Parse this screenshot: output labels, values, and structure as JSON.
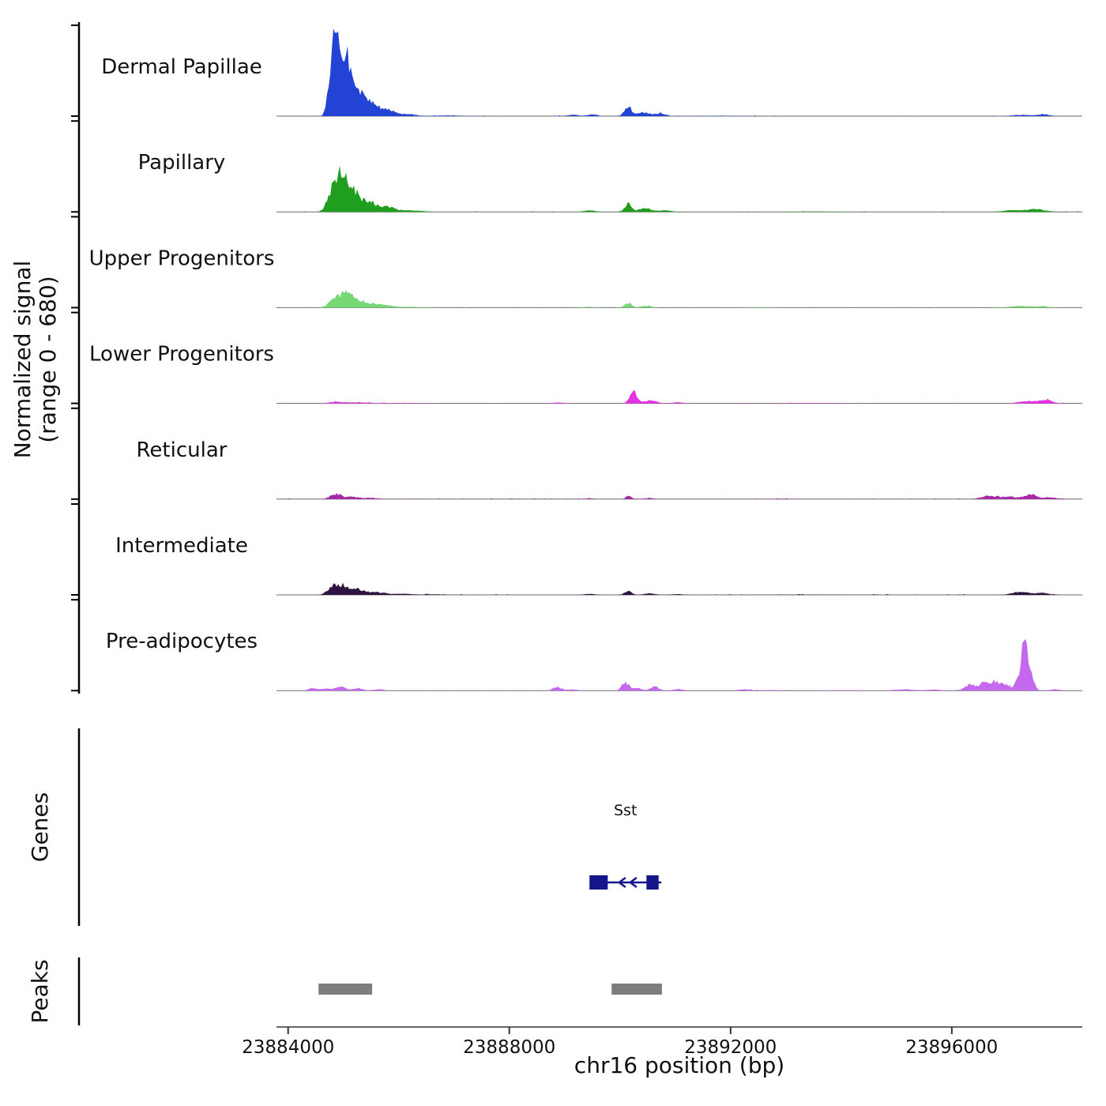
{
  "figure": {
    "xlabel": "chr16 position (bp)",
    "ylabel_line1": "Normalized signal",
    "ylabel_line2": "(range 0 - 680)",
    "genes_section_label": "Genes",
    "peaks_section_label": "Peaks"
  },
  "chart_data": {
    "type": "area",
    "xlabel": "chr16 position (bp)",
    "ylabel": "Normalized signal (range 0 - 680)",
    "xlim": [
      23883790,
      23898360
    ],
    "ylim": [
      0,
      680
    ],
    "x_ticks": [
      23884000,
      23888000,
      23892000,
      23896000
    ],
    "grid": false,
    "bump_format": "[center_bp, width_bp, height_signal_units]",
    "tracks": [
      {
        "name": "Dermal Papillae",
        "color": "#2343d5",
        "bumps": [
          [
            23884780,
            60,
            300
          ],
          [
            23884900,
            80,
            560
          ],
          [
            23885060,
            70,
            340
          ],
          [
            23885260,
            110,
            190
          ],
          [
            23885520,
            140,
            85
          ],
          [
            23885820,
            120,
            38
          ],
          [
            23886150,
            150,
            14
          ],
          [
            23886900,
            250,
            5
          ],
          [
            23889150,
            100,
            9
          ],
          [
            23889500,
            80,
            13
          ],
          [
            23890150,
            70,
            66
          ],
          [
            23890420,
            100,
            28
          ],
          [
            23890720,
            100,
            20
          ],
          [
            23891800,
            300,
            3
          ],
          [
            23897250,
            150,
            9
          ],
          [
            23897650,
            120,
            13
          ]
        ]
      },
      {
        "name": "Papillary",
        "color": "#1f9e1f",
        "bumps": [
          [
            23884780,
            80,
            120
          ],
          [
            23884950,
            100,
            245
          ],
          [
            23885160,
            120,
            140
          ],
          [
            23885460,
            170,
            65
          ],
          [
            23885820,
            150,
            28
          ],
          [
            23886250,
            200,
            9
          ],
          [
            23889450,
            100,
            11
          ],
          [
            23890150,
            60,
            60
          ],
          [
            23890460,
            120,
            26
          ],
          [
            23890820,
            100,
            11
          ],
          [
            23893500,
            500,
            2
          ],
          [
            23897150,
            200,
            13
          ],
          [
            23897550,
            150,
            17
          ]
        ]
      },
      {
        "name": "Upper Progenitors",
        "color": "#74d874",
        "bumps": [
          [
            23884830,
            100,
            55
          ],
          [
            23885050,
            120,
            105
          ],
          [
            23885360,
            150,
            45
          ],
          [
            23885720,
            150,
            18
          ],
          [
            23886200,
            200,
            6
          ],
          [
            23889450,
            100,
            7
          ],
          [
            23890150,
            60,
            36
          ],
          [
            23890460,
            100,
            13
          ],
          [
            23892500,
            400,
            2
          ],
          [
            23897250,
            200,
            11
          ],
          [
            23897650,
            120,
            9
          ]
        ]
      },
      {
        "name": "Lower Progenitors",
        "color": "#e531e5",
        "bumps": [
          [
            23884900,
            150,
            11
          ],
          [
            23885300,
            150,
            7
          ],
          [
            23886000,
            300,
            3
          ],
          [
            23888900,
            120,
            5
          ],
          [
            23890250,
            70,
            82
          ],
          [
            23890560,
            100,
            23
          ],
          [
            23891050,
            100,
            7
          ],
          [
            23893500,
            400,
            3
          ],
          [
            23897350,
            150,
            16
          ],
          [
            23897700,
            110,
            26
          ]
        ]
      },
      {
        "name": "Reticular",
        "color": "#a826a8",
        "bumps": [
          [
            23884860,
            100,
            36
          ],
          [
            23885160,
            120,
            18
          ],
          [
            23885520,
            120,
            8
          ],
          [
            23886300,
            300,
            2
          ],
          [
            23889450,
            80,
            5
          ],
          [
            23890160,
            50,
            24
          ],
          [
            23890520,
            100,
            7
          ],
          [
            23892800,
            400,
            2
          ],
          [
            23896700,
            150,
            24
          ],
          [
            23897050,
            100,
            18
          ],
          [
            23897420,
            120,
            38
          ],
          [
            23897800,
            100,
            13
          ]
        ]
      },
      {
        "name": "Intermediate",
        "color": "#2e1240",
        "bumps": [
          [
            23884800,
            90,
            52
          ],
          [
            23884990,
            100,
            68
          ],
          [
            23885260,
            130,
            42
          ],
          [
            23885620,
            130,
            20
          ],
          [
            23886050,
            150,
            9
          ],
          [
            23886600,
            200,
            4
          ],
          [
            23889450,
            100,
            7
          ],
          [
            23890150,
            60,
            28
          ],
          [
            23890520,
            100,
            11
          ],
          [
            23891050,
            100,
            5
          ],
          [
            23893500,
            600,
            2
          ],
          [
            23897250,
            150,
            20
          ],
          [
            23897650,
            120,
            13
          ]
        ]
      },
      {
        "name": "Pre-adipocytes",
        "color": "#c468ee",
        "bumps": [
          [
            23884450,
            70,
            22
          ],
          [
            23884700,
            80,
            17
          ],
          [
            23884960,
            90,
            27
          ],
          [
            23885260,
            80,
            19
          ],
          [
            23885640,
            100,
            9
          ],
          [
            23888870,
            80,
            25
          ],
          [
            23889150,
            80,
            9
          ],
          [
            23890100,
            70,
            56
          ],
          [
            23890320,
            80,
            18
          ],
          [
            23890620,
            70,
            33
          ],
          [
            23891050,
            80,
            11
          ],
          [
            23892250,
            120,
            9
          ],
          [
            23892750,
            100,
            5
          ],
          [
            23894100,
            300,
            3
          ],
          [
            23895150,
            150,
            11
          ],
          [
            23895650,
            120,
            7
          ],
          [
            23896350,
            100,
            48
          ],
          [
            23896600,
            80,
            58
          ],
          [
            23896800,
            70,
            68
          ],
          [
            23896980,
            70,
            48
          ],
          [
            23897180,
            50,
            55
          ],
          [
            23897320,
            60,
            385
          ],
          [
            23897460,
            50,
            75
          ],
          [
            23897850,
            100,
            9
          ]
        ]
      }
    ],
    "genes": [
      {
        "name": "Sst",
        "start": 23889450,
        "end": 23890750,
        "strand": "-",
        "exons": [
          [
            23889450,
            23889780
          ],
          [
            23890480,
            23890700
          ]
        ],
        "color": "#16168c"
      }
    ],
    "peak_regions": [
      {
        "start": 23884550,
        "end": 23885520
      },
      {
        "start": 23889850,
        "end": 23890760
      }
    ],
    "peak_color": "#7d7d7d"
  }
}
